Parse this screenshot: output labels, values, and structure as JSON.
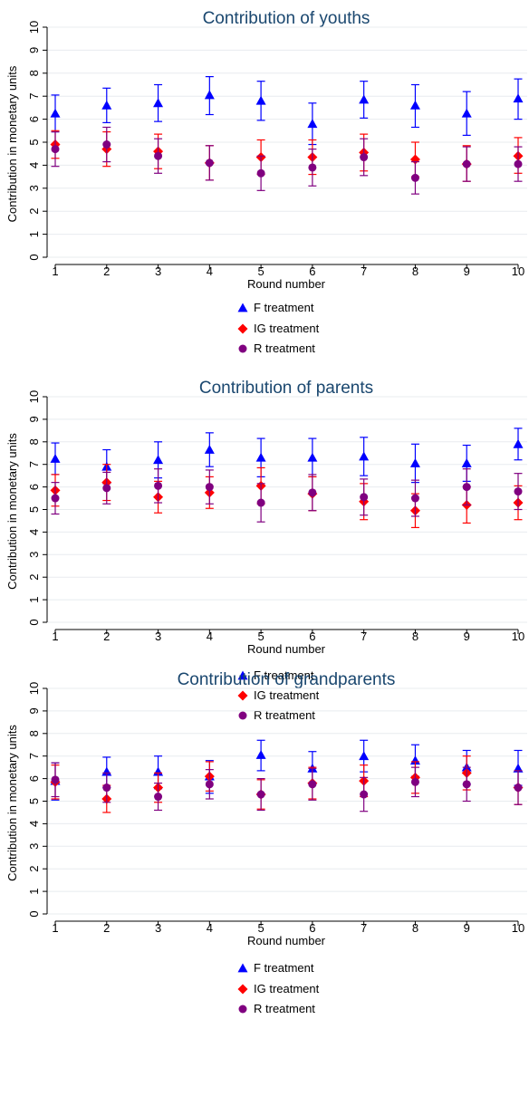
{
  "colors": {
    "F treatment": "#0000ff",
    "IG treatment": "#ff0000",
    "R treatment": "#800080",
    "title": "#1a476f",
    "grid": "#e8ecef"
  },
  "chart_data": [
    {
      "type": "scatter",
      "title": "Contribution of youths",
      "xlabel": "Round number",
      "ylabel": "Contribution in monetary units",
      "x": [
        1,
        2,
        3,
        4,
        5,
        6,
        7,
        8,
        9,
        10
      ],
      "ylim": [
        0,
        10
      ],
      "yticks": [
        0,
        1,
        2,
        3,
        4,
        5,
        6,
        7,
        8,
        9,
        10
      ],
      "grid": true,
      "legend": "bottom",
      "series": [
        {
          "name": "F treatment",
          "marker": "triangle",
          "values": [
            6.25,
            6.6,
            6.7,
            7.05,
            6.8,
            5.8,
            6.85,
            6.6,
            6.25,
            6.9
          ],
          "lower": [
            5.45,
            5.85,
            5.9,
            6.2,
            5.95,
            4.9,
            6.05,
            5.65,
            5.3,
            6.0
          ],
          "upper": [
            7.05,
            7.35,
            7.5,
            7.85,
            7.65,
            6.7,
            7.65,
            7.5,
            7.2,
            7.75
          ]
        },
        {
          "name": "IG treatment",
          "marker": "diamond",
          "values": [
            4.9,
            4.7,
            4.6,
            4.1,
            4.35,
            4.35,
            4.55,
            4.25,
            4.05,
            4.4
          ],
          "lower": [
            4.3,
            3.95,
            3.85,
            3.35,
            3.6,
            3.6,
            3.75,
            3.5,
            3.3,
            3.65
          ],
          "upper": [
            5.5,
            5.45,
            5.35,
            4.85,
            5.1,
            5.1,
            5.35,
            5.0,
            4.85,
            5.2
          ]
        },
        {
          "name": "R treatment",
          "marker": "circle",
          "values": [
            4.7,
            4.9,
            4.4,
            4.1,
            3.65,
            3.9,
            4.35,
            3.45,
            4.05,
            4.05
          ],
          "lower": [
            3.95,
            4.15,
            3.65,
            3.35,
            2.9,
            3.1,
            3.55,
            2.75,
            3.3,
            3.3
          ],
          "upper": [
            5.45,
            5.65,
            5.15,
            4.85,
            4.4,
            4.7,
            5.15,
            4.15,
            4.8,
            4.8
          ]
        }
      ],
      "legend_labels": [
        "F treatment",
        "IG treatment",
        "R treatment"
      ]
    },
    {
      "type": "scatter",
      "title": "Contribution of parents",
      "xlabel": "Round number",
      "ylabel": "Contribution in monetary units",
      "x": [
        1,
        2,
        3,
        4,
        5,
        6,
        7,
        8,
        9,
        10
      ],
      "ylim": [
        0,
        10
      ],
      "yticks": [
        0,
        1,
        2,
        3,
        4,
        5,
        6,
        7,
        8,
        9,
        10
      ],
      "grid": true,
      "legend": "bottom",
      "series": [
        {
          "name": "F treatment",
          "marker": "triangle",
          "values": [
            7.25,
            6.9,
            7.2,
            7.65,
            7.3,
            7.3,
            7.35,
            7.05,
            7.05,
            7.9
          ],
          "lower": [
            6.55,
            6.15,
            6.4,
            6.9,
            6.45,
            6.45,
            6.5,
            6.2,
            6.25,
            7.2
          ],
          "upper": [
            7.95,
            7.65,
            8.0,
            8.4,
            8.15,
            8.15,
            8.2,
            7.9,
            7.85,
            8.6
          ]
        },
        {
          "name": "IG treatment",
          "marker": "diamond",
          "values": [
            5.85,
            6.2,
            5.55,
            5.75,
            6.05,
            5.7,
            5.35,
            4.95,
            5.2,
            5.3
          ],
          "lower": [
            5.15,
            5.4,
            4.85,
            5.05,
            5.25,
            4.95,
            4.55,
            4.2,
            4.4,
            4.55
          ],
          "upper": [
            6.55,
            7.0,
            6.25,
            6.45,
            6.85,
            6.45,
            6.15,
            5.7,
            6.0,
            6.05
          ]
        },
        {
          "name": "R treatment",
          "marker": "circle",
          "values": [
            5.5,
            5.95,
            6.05,
            6.0,
            5.3,
            5.75,
            5.55,
            5.5,
            6.0,
            5.8
          ],
          "lower": [
            4.8,
            5.25,
            5.3,
            5.25,
            4.45,
            4.95,
            4.75,
            4.7,
            5.2,
            5.0
          ],
          "upper": [
            6.2,
            6.65,
            6.8,
            6.75,
            6.15,
            6.55,
            6.35,
            6.3,
            6.8,
            6.6
          ]
        }
      ],
      "legend_labels": [
        "F treatment",
        "IG treatment",
        "R treatment"
      ]
    },
    {
      "type": "scatter",
      "title": "Contribution of grandparents",
      "xlabel": "Round number",
      "ylabel": "Contribution in monetary units",
      "x": [
        1,
        2,
        3,
        4,
        5,
        6,
        7,
        8,
        9,
        10
      ],
      "ylim": [
        0,
        10
      ],
      "yticks": [
        0,
        1,
        2,
        3,
        4,
        5,
        6,
        7,
        8,
        9,
        10
      ],
      "grid": true,
      "legend": "bottom",
      "series": [
        {
          "name": "F treatment",
          "marker": "triangle",
          "values": [
            5.9,
            6.3,
            6.3,
            6.1,
            7.05,
            6.45,
            7.0,
            6.8,
            6.5,
            6.45
          ],
          "lower": [
            5.05,
            5.6,
            5.55,
            5.35,
            6.35,
            5.75,
            6.3,
            6.1,
            5.75,
            5.7
          ],
          "upper": [
            6.7,
            6.95,
            7.0,
            6.8,
            7.7,
            7.2,
            7.7,
            7.5,
            7.25,
            7.25
          ]
        },
        {
          "name": "IG treatment",
          "marker": "diamond",
          "values": [
            5.85,
            5.1,
            5.6,
            6.1,
            5.3,
            5.8,
            5.9,
            6.05,
            6.25,
            5.6
          ],
          "lower": [
            5.1,
            4.5,
            4.95,
            5.45,
            4.65,
            5.1,
            5.2,
            5.35,
            5.5,
            4.85
          ],
          "upper": [
            6.6,
            5.7,
            6.25,
            6.75,
            5.95,
            6.5,
            6.6,
            6.75,
            7.0,
            6.35
          ]
        },
        {
          "name": "R treatment",
          "marker": "circle",
          "values": [
            5.95,
            5.6,
            5.2,
            5.75,
            5.3,
            5.75,
            5.3,
            5.85,
            5.75,
            5.6
          ],
          "lower": [
            5.2,
            4.95,
            4.6,
            5.1,
            4.6,
            5.05,
            4.55,
            5.2,
            5.0,
            4.85
          ],
          "upper": [
            6.7,
            6.25,
            5.8,
            6.4,
            6.0,
            6.45,
            6.05,
            6.5,
            6.5,
            6.35
          ]
        }
      ],
      "legend_labels": [
        "F treatment",
        "IG treatment",
        "R treatment"
      ]
    }
  ]
}
